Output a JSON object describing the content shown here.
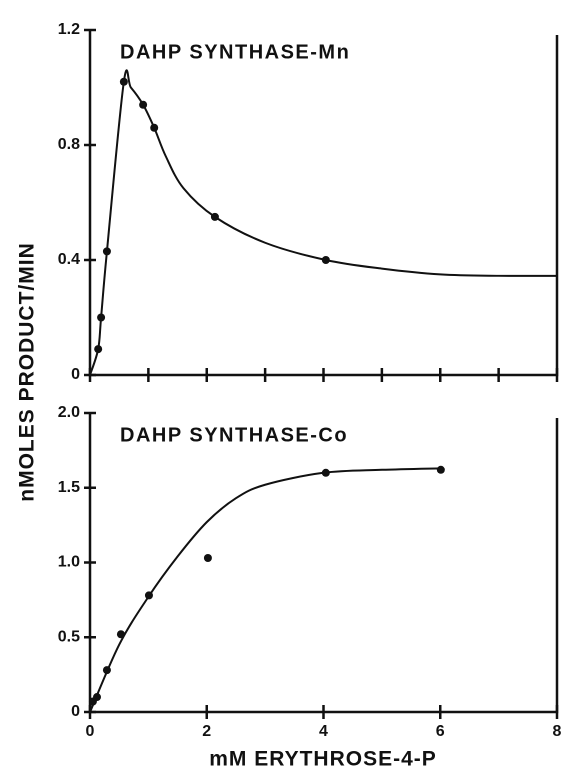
{
  "chart_data": [
    {
      "type": "scatter",
      "title": "DAHP SYNTHASE-Mn",
      "ylabel": "nMOLES PRODUCT/MIN",
      "x": [
        0.14,
        0.19,
        0.29,
        0.58,
        0.91,
        1.1,
        2.14,
        4.04
      ],
      "values": [
        0.09,
        0.2,
        0.43,
        1.02,
        0.94,
        0.86,
        0.55,
        0.4
      ],
      "fit": {
        "x": [
          0,
          0.14,
          0.19,
          0.29,
          0.58,
          0.7,
          0.91,
          1.1,
          1.3,
          1.6,
          2.14,
          3,
          4.04,
          5,
          6,
          7,
          8
        ],
        "values": [
          0,
          0.09,
          0.2,
          0.43,
          1.02,
          1.0,
          0.94,
          0.86,
          0.76,
          0.65,
          0.55,
          0.46,
          0.4,
          0.37,
          0.35,
          0.345,
          0.345
        ]
      },
      "xlim": [
        0,
        8
      ],
      "xticks": [
        0,
        1,
        2,
        3,
        4,
        5,
        6,
        7,
        8
      ],
      "ylim": [
        0,
        1.2
      ],
      "yticks": [
        0,
        0.4,
        0.8,
        1.2
      ],
      "color": "#111111"
    },
    {
      "type": "scatter",
      "title": "DAHP SYNTHASE-Co",
      "xlabel": "mM ERYTHROSE-4-P",
      "x": [
        0.05,
        0.12,
        0.29,
        0.53,
        1.01,
        2.02,
        4.04,
        6.01
      ],
      "values": [
        0.07,
        0.1,
        0.28,
        0.52,
        0.78,
        1.03,
        1.6,
        1.62
      ],
      "fit": {
        "x": [
          0,
          0.5,
          1,
          1.5,
          2,
          2.5,
          3,
          4,
          5,
          6
        ],
        "values": [
          0,
          0.45,
          0.77,
          1.04,
          1.27,
          1.43,
          1.52,
          1.6,
          1.62,
          1.63
        ]
      },
      "xlim": [
        0,
        8
      ],
      "xticks": [
        0,
        2,
        4,
        6,
        8
      ],
      "ylim": [
        0,
        2
      ],
      "yticks": [
        0,
        0.5,
        {
          "value": 1,
          "label": "1.0"
        },
        1.5,
        {
          "value": 2,
          "label": "2.0"
        }
      ],
      "color": "#111111"
    }
  ]
}
